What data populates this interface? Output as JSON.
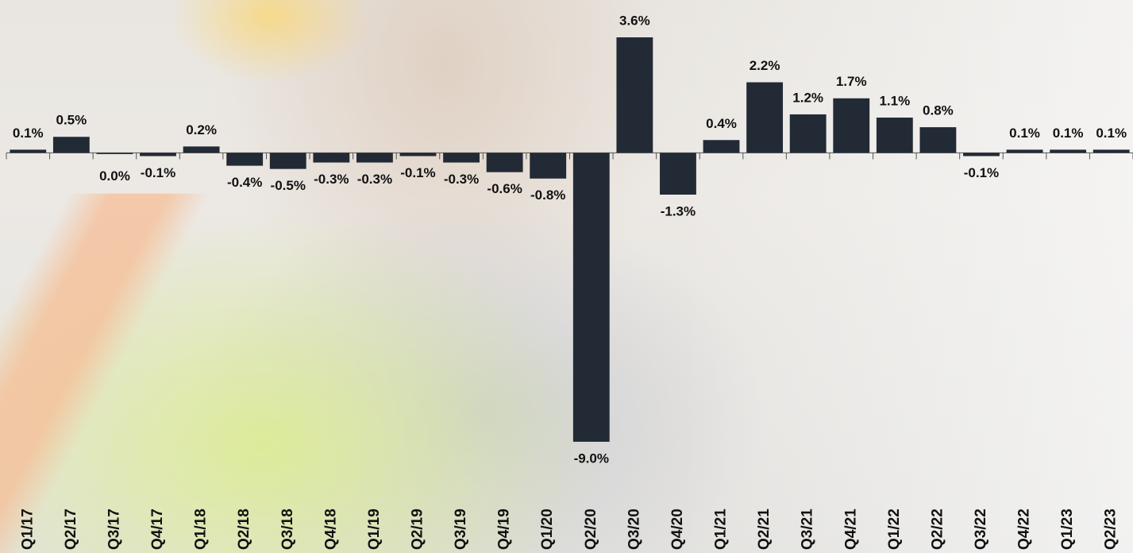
{
  "chart_data": {
    "type": "bar",
    "categories": [
      "Q1/17",
      "Q2/17",
      "Q3/17",
      "Q4/17",
      "Q1/18",
      "Q2/18",
      "Q3/18",
      "Q4/18",
      "Q1/19",
      "Q2/19",
      "Q3/19",
      "Q4/19",
      "Q1/20",
      "Q2/20",
      "Q3/20",
      "Q4/20",
      "Q1/21",
      "Q2/21",
      "Q3/21",
      "Q4/21",
      "Q1/22",
      "Q2/22",
      "Q3/22",
      "Q4/22",
      "Q1/23",
      "Q2/23"
    ],
    "values": [
      0.1,
      0.5,
      0.0,
      -0.1,
      0.2,
      -0.4,
      -0.5,
      -0.3,
      -0.3,
      -0.1,
      -0.3,
      -0.6,
      -0.8,
      -9.0,
      3.6,
      -1.3,
      0.4,
      2.2,
      1.2,
      1.7,
      1.1,
      0.8,
      -0.1,
      0.1,
      0.1,
      0.1
    ],
    "value_labels": [
      "0.1%",
      "0.5%",
      "0.0%",
      "-0.1%",
      "0.2%",
      "-0.4%",
      "-0.5%",
      "-0.3%",
      "-0.3%",
      "-0.1%",
      "-0.3%",
      "-0.6%",
      "-0.8%",
      "-9.0%",
      "3.6%",
      "-1.3%",
      "0.4%",
      "2.2%",
      "1.2%",
      "1.7%",
      "1.1%",
      "0.8%",
      "-0.1%",
      "0.1%",
      "0.1%",
      "0.1%"
    ],
    "color": "#222a35"
  }
}
